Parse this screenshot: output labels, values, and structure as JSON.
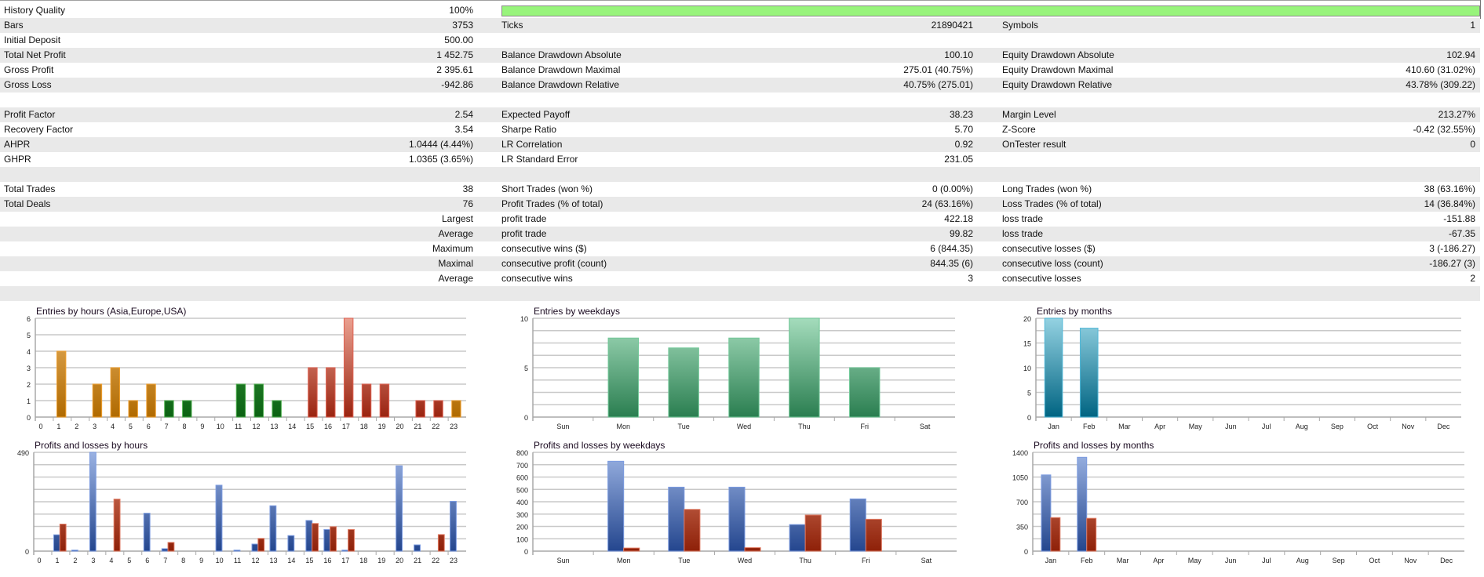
{
  "report": {
    "rows": [
      {
        "l1": "History Quality",
        "v1": "100%",
        "progress": 100
      },
      {
        "l1": "Bars",
        "v1": "3753",
        "l2": "Ticks",
        "v2": "21890421",
        "l3": "Symbols",
        "v3": "1"
      },
      {
        "l1": "Initial Deposit",
        "v1": "500.00"
      },
      {
        "l1": "Total Net Profit",
        "v1": "1 452.75",
        "l2": "Balance Drawdown Absolute",
        "v2": "100.10",
        "l3": "Equity Drawdown Absolute",
        "v3": "102.94"
      },
      {
        "l1": "Gross Profit",
        "v1": "2 395.61",
        "l2": "Balance Drawdown Maximal",
        "v2": "275.01 (40.75%)",
        "l3": "Equity Drawdown Maximal",
        "v3": "410.60 (31.02%)"
      },
      {
        "l1": "Gross Loss",
        "v1": "-942.86",
        "l2": "Balance Drawdown Relative",
        "v2": "40.75% (275.01)",
        "l3": "Equity Drawdown Relative",
        "v3": "43.78% (309.22)"
      },
      {},
      {
        "l1": "Profit Factor",
        "v1": "2.54",
        "l2": "Expected Payoff",
        "v2": "38.23",
        "l3": "Margin Level",
        "v3": "213.27%"
      },
      {
        "l1": "Recovery Factor",
        "v1": "3.54",
        "l2": "Sharpe Ratio",
        "v2": "5.70",
        "l3": "Z-Score",
        "v3": "-0.42 (32.55%)"
      },
      {
        "l1": "AHPR",
        "v1": "1.0444 (4.44%)",
        "l2": "LR Correlation",
        "v2": "0.92",
        "l3": "OnTester result",
        "v3": "0"
      },
      {
        "l1": "GHPR",
        "v1": "1.0365 (3.65%)",
        "l2": "LR Standard Error",
        "v2": "231.05"
      },
      {},
      {
        "l1": "Total Trades",
        "v1": "38",
        "l2": "Short Trades (won %)",
        "v2": "0 (0.00%)",
        "l3": "Long Trades (won %)",
        "v3": "38 (63.16%)"
      },
      {
        "l1": "Total Deals",
        "v1": "76",
        "l2": "Profit Trades (% of total)",
        "v2": "24 (63.16%)",
        "l3": "Loss Trades (% of total)",
        "v3": "14 (36.84%)"
      },
      {
        "v1": "Largest",
        "l2": "profit trade",
        "v2": "422.18",
        "l3": "loss trade",
        "v3": "-151.88"
      },
      {
        "v1": "Average",
        "l2": "profit trade",
        "v2": "99.82",
        "l3": "loss trade",
        "v3": "-67.35"
      },
      {
        "v1": "Maximum",
        "l2": "consecutive wins ($)",
        "v2": "6 (844.35)",
        "l3": "consecutive losses ($)",
        "v3": "3 (-186.27)"
      },
      {
        "v1": "Maximal",
        "l2": "consecutive profit (count)",
        "v2": "844.35 (6)",
        "l3": "consecutive loss (count)",
        "v3": "-186.27 (3)"
      },
      {
        "v1": "Average",
        "l2": "consecutive wins",
        "v2": "3",
        "l3": "consecutive losses",
        "v3": "2"
      },
      {}
    ]
  },
  "colors": {
    "row_alt": "#e9e9e9",
    "progress": "#98f47c",
    "asia": [
      "#e6b060",
      "#b06a00"
    ],
    "europe": [
      "#3c9c44",
      "#0b6212"
    ],
    "usa": [
      "#eaa090",
      "#9a2410"
    ],
    "weekday": [
      "#a4dcbc",
      "#2a7e50"
    ],
    "month": [
      "#94d2e2",
      "#006482"
    ],
    "profit": [
      "#9ab2e2",
      "#24468e"
    ],
    "loss": [
      "#e08a70",
      "#8e2008"
    ]
  },
  "chart_data": [
    {
      "id": "entries-hours",
      "type": "bar",
      "title": "Entries by hours (Asia,Europe,USA)",
      "categories": [
        "0",
        "1",
        "2",
        "3",
        "4",
        "5",
        "6",
        "7",
        "8",
        "9",
        "10",
        "11",
        "12",
        "13",
        "14",
        "15",
        "16",
        "17",
        "18",
        "19",
        "20",
        "21",
        "22",
        "23"
      ],
      "values": [
        0,
        4,
        0,
        2,
        3,
        1,
        2,
        1,
        1,
        0,
        0,
        2,
        2,
        1,
        0,
        3,
        3,
        6,
        2,
        2,
        0,
        1,
        1,
        1
      ],
      "sessions": [
        "asia",
        "asia",
        "asia",
        "asia",
        "asia",
        "asia",
        "asia",
        "europe",
        "europe",
        "europe",
        "europe",
        "europe",
        "europe",
        "europe",
        "usa",
        "usa",
        "usa",
        "usa",
        "usa",
        "usa",
        "usa",
        "usa",
        "usa",
        "asia"
      ],
      "ylim": [
        0,
        6
      ],
      "yticks": [
        0,
        1,
        2,
        3,
        4,
        5,
        6
      ],
      "ytick_labels": [
        "0",
        "1",
        "2",
        "3",
        "4",
        "5",
        "6"
      ],
      "grid_divisions": 6
    },
    {
      "id": "pl-hours",
      "type": "bar",
      "title": "Profits and losses by hours",
      "categories": [
        "0",
        "1",
        "2",
        "3",
        "4",
        "5",
        "6",
        "7",
        "8",
        "9",
        "10",
        "11",
        "12",
        "13",
        "14",
        "15",
        "16",
        "17",
        "18",
        "19",
        "20",
        "21",
        "22",
        "23"
      ],
      "series": [
        {
          "name": "profits",
          "values": [
            0,
            81,
            5,
            490,
            0,
            0,
            188,
            12,
            0,
            0,
            327,
            5,
            35,
            225,
            77,
            152,
            107,
            5,
            0,
            0,
            423,
            31,
            0,
            247
          ]
        },
        {
          "name": "losses",
          "values": [
            0,
            134,
            0,
            0,
            258,
            0,
            0,
            43,
            0,
            0,
            0,
            0,
            63,
            0,
            0,
            137,
            121,
            107,
            0,
            0,
            0,
            0,
            82,
            0
          ]
        }
      ],
      "ylim": [
        0,
        490
      ],
      "yticks": [
        0,
        490
      ],
      "ytick_labels": [
        "0",
        "490"
      ],
      "grid_divisions": 8
    },
    {
      "id": "entries-weekdays",
      "type": "bar",
      "title": "Entries by weekdays",
      "categories": [
        "Sun",
        "Mon",
        "Tue",
        "Wed",
        "Thu",
        "Fri",
        "Sat"
      ],
      "values": [
        0,
        8,
        7,
        8,
        10,
        5,
        0
      ],
      "ylim": [
        0,
        10
      ],
      "yticks": [
        0,
        5,
        10
      ],
      "ytick_labels": [
        "0",
        "5",
        "10"
      ],
      "grid_divisions": 8
    },
    {
      "id": "pl-weekdays",
      "type": "bar",
      "title": "Profits and losses by weekdays",
      "categories": [
        "Sun",
        "Mon",
        "Tue",
        "Wed",
        "Thu",
        "Fri",
        "Sat"
      ],
      "series": [
        {
          "name": "profits",
          "values": [
            0,
            728,
            518,
            518,
            215,
            423,
            0
          ]
        },
        {
          "name": "losses",
          "values": [
            0,
            25,
            338,
            28,
            292,
            258,
            0
          ]
        }
      ],
      "ylim": [
        0,
        800
      ],
      "yticks": [
        0,
        100,
        200,
        300,
        400,
        500,
        600,
        700,
        800
      ],
      "ytick_labels": [
        "0",
        "100",
        "200",
        "300",
        "400",
        "500",
        "600",
        "700",
        "800"
      ],
      "grid_divisions": 8
    },
    {
      "id": "entries-months",
      "type": "bar",
      "title": "Entries by months",
      "categories": [
        "Jan",
        "Feb",
        "Mar",
        "Apr",
        "May",
        "Jun",
        "Jul",
        "Aug",
        "Sep",
        "Oct",
        "Nov",
        "Dec"
      ],
      "values": [
        20,
        18,
        0,
        0,
        0,
        0,
        0,
        0,
        0,
        0,
        0,
        0
      ],
      "ylim": [
        0,
        20
      ],
      "yticks": [
        0,
        5,
        10,
        15,
        20
      ],
      "ytick_labels": [
        "0",
        "5",
        "10",
        "15",
        "20"
      ],
      "grid_divisions": 8
    },
    {
      "id": "pl-months",
      "type": "bar",
      "title": "Profits and losses by months",
      "categories": [
        "Jan",
        "Feb",
        "Mar",
        "Apr",
        "May",
        "Jun",
        "Jul",
        "Aug",
        "Sep",
        "Oct",
        "Nov",
        "Dec"
      ],
      "series": [
        {
          "name": "profits",
          "values": [
            1080,
            1330,
            0,
            0,
            0,
            0,
            0,
            0,
            0,
            0,
            0,
            0
          ]
        },
        {
          "name": "losses",
          "values": [
            475,
            465,
            0,
            0,
            0,
            0,
            0,
            0,
            0,
            0,
            0,
            0
          ]
        }
      ],
      "ylim": [
        0,
        1400
      ],
      "yticks": [
        0,
        350,
        700,
        1050,
        1400
      ],
      "ytick_labels": [
        "0",
        "350",
        "700",
        "1050",
        "1400"
      ],
      "grid_divisions": 8
    }
  ]
}
